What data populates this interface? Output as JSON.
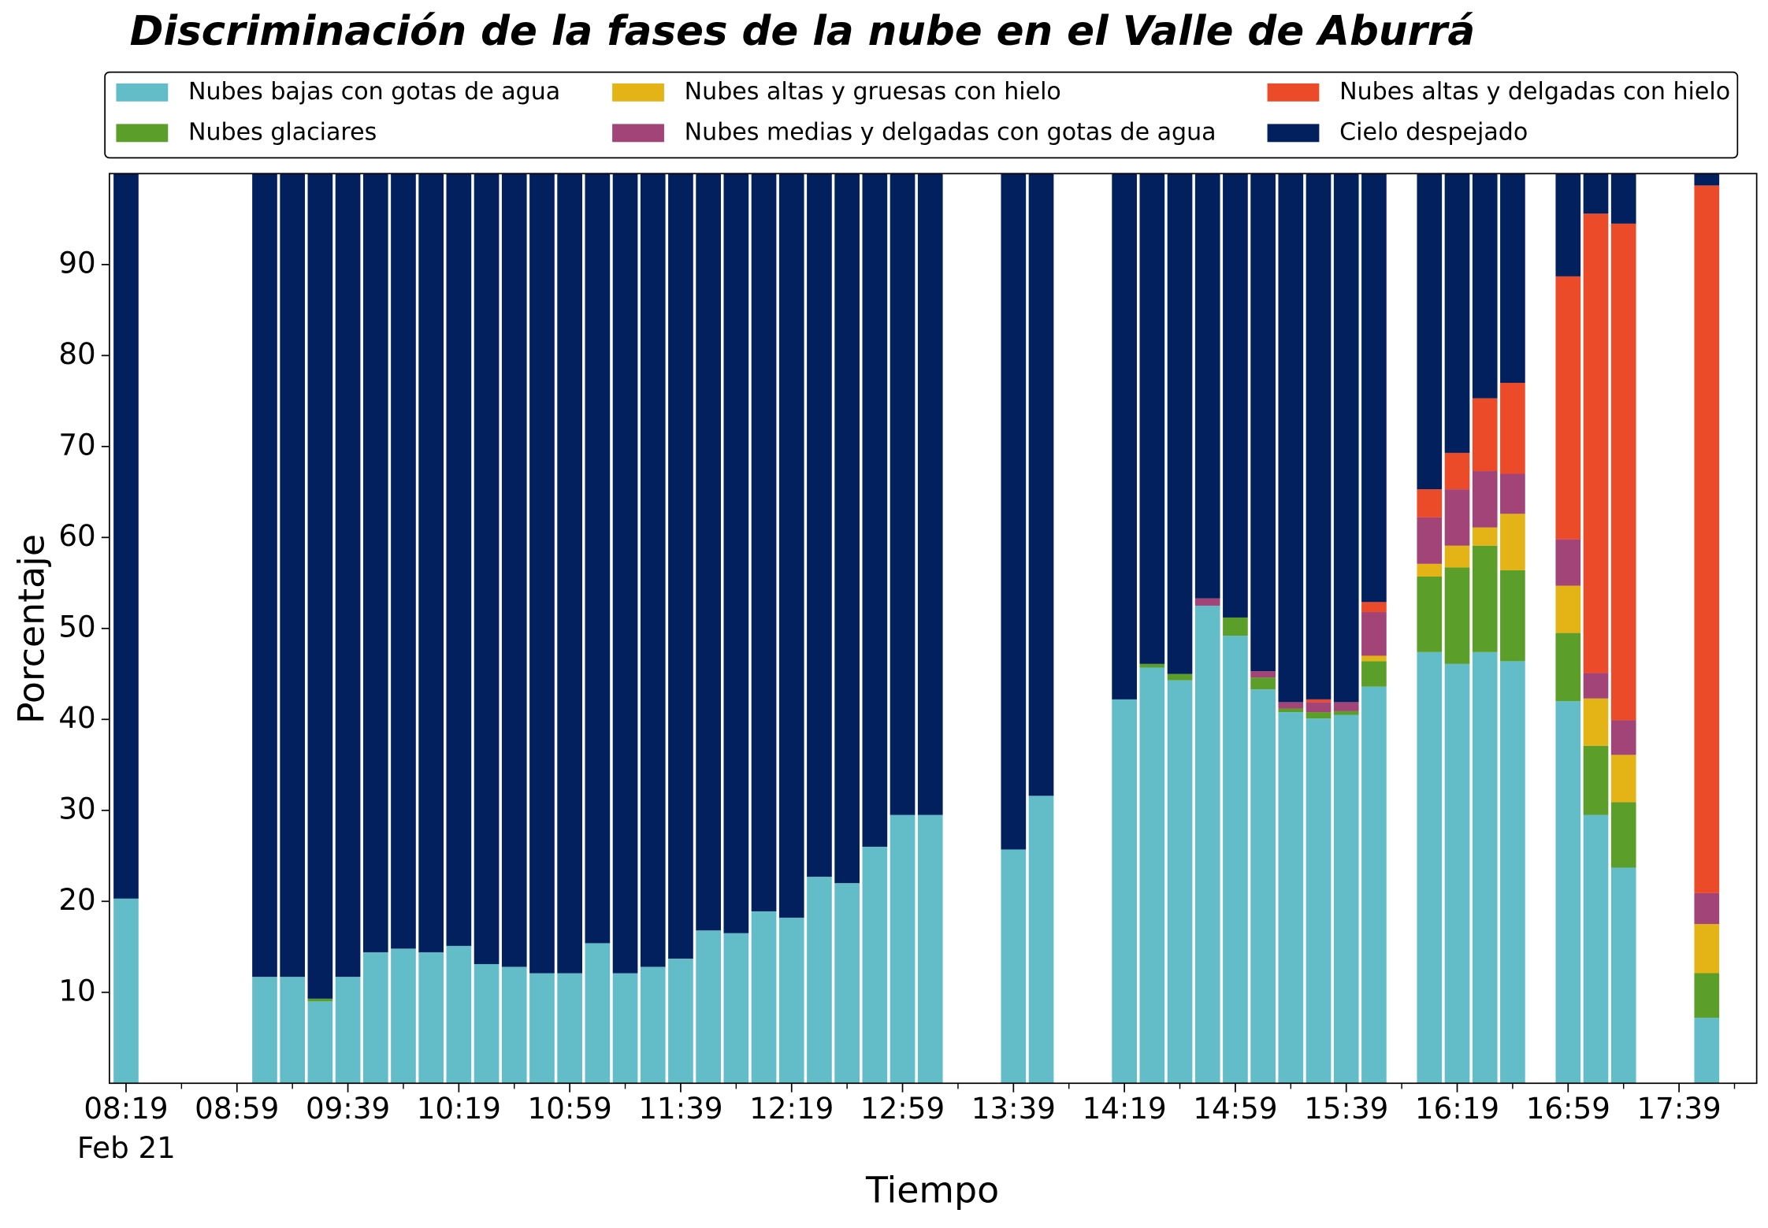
{
  "chart_data": {
    "type": "stacked_bar",
    "title": "Discriminación de la fases de la nube en el Valle de Aburrá",
    "xlabel": "Tiempo",
    "ylabel": "Porcentaje",
    "date": "Feb 21",
    "x": [
      "08:19",
      "09:09",
      "09:19",
      "09:29",
      "09:39",
      "09:49",
      "09:59",
      "10:09",
      "10:19",
      "10:29",
      "10:39",
      "10:49",
      "10:59",
      "11:09",
      "11:19",
      "11:29",
      "11:39",
      "11:49",
      "11:59",
      "12:09",
      "12:19",
      "12:29",
      "12:39",
      "12:49",
      "12:59",
      "13:09",
      "13:39",
      "13:49",
      "14:19",
      "14:29",
      "14:39",
      "14:49",
      "14:59",
      "15:09",
      "15:19",
      "15:29",
      "15:39",
      "15:49",
      "16:09",
      "16:19",
      "16:29",
      "16:39",
      "16:59",
      "17:09",
      "17:19",
      "17:49"
    ],
    "series": [
      {
        "name": "Nubes bajas con gotas de agua",
        "color": "#63bdc9",
        "values": [
          20.3,
          11.7,
          11.7,
          9.0,
          11.7,
          14.4,
          14.8,
          14.4,
          15.1,
          13.1,
          12.8,
          12.1,
          12.1,
          15.4,
          12.1,
          12.8,
          13.7,
          16.8,
          16.5,
          18.9,
          18.2,
          22.7,
          22.0,
          26.0,
          29.5,
          29.5,
          25.7,
          31.6,
          42.2,
          45.7,
          44.3,
          52.5,
          49.2,
          43.3,
          40.8,
          40.1,
          40.5,
          43.6,
          47.4,
          46.1,
          47.4,
          46.4,
          42.0,
          29.5,
          23.7,
          7.2
        ]
      },
      {
        "name": "Nubes glaciares",
        "color": "#5c9e2a",
        "values": [
          0,
          0,
          0,
          0.3,
          0,
          0,
          0,
          0,
          0,
          0,
          0,
          0,
          0,
          0,
          0,
          0,
          0,
          0,
          0,
          0,
          0,
          0,
          0,
          0,
          0,
          0,
          0,
          0,
          0,
          0.4,
          0.7,
          0,
          2.0,
          1.3,
          0.4,
          0.7,
          0.4,
          2.8,
          8.3,
          10.6,
          11.7,
          10.0,
          7.5,
          7.6,
          7.2,
          4.9
        ]
      },
      {
        "name": "Nubes altas y gruesas con hielo",
        "color": "#e4b416",
        "values": [
          0,
          0,
          0,
          0,
          0,
          0,
          0,
          0,
          0,
          0,
          0,
          0,
          0,
          0,
          0,
          0,
          0,
          0,
          0,
          0,
          0,
          0,
          0,
          0,
          0,
          0,
          0,
          0,
          0,
          0,
          0,
          0,
          0,
          0,
          0,
          0,
          0,
          0.6,
          1.4,
          2.4,
          2.0,
          6.2,
          5.2,
          5.2,
          5.2,
          5.4
        ]
      },
      {
        "name": "Nubes medias y delgadas con gotas de agua",
        "color": "#a24477",
        "values": [
          0,
          0,
          0,
          0,
          0,
          0,
          0,
          0,
          0,
          0,
          0,
          0,
          0,
          0,
          0,
          0,
          0,
          0,
          0,
          0,
          0,
          0,
          0,
          0,
          0,
          0,
          0,
          0,
          0,
          0,
          0,
          0.8,
          0,
          0.7,
          0.7,
          1.1,
          1.0,
          4.8,
          5.1,
          6.2,
          6.2,
          4.4,
          5.1,
          2.8,
          3.8,
          3.4
        ]
      },
      {
        "name": "Nubes altas y delgadas con hielo",
        "color": "#ec4b2a",
        "values": [
          0,
          0,
          0,
          0,
          0,
          0,
          0,
          0,
          0,
          0,
          0,
          0,
          0,
          0,
          0,
          0,
          0,
          0,
          0,
          0,
          0,
          0,
          0,
          0,
          0,
          0,
          0,
          0,
          0,
          0,
          0,
          0,
          0,
          0,
          0,
          0.3,
          0,
          1.1,
          3.1,
          4.0,
          8.0,
          10.0,
          28.9,
          50.5,
          54.6,
          77.8
        ]
      },
      {
        "name": "Cielo despejado",
        "color": "#021f5e",
        "values": [
          79.7,
          88.3,
          88.3,
          90.7,
          88.3,
          85.6,
          85.2,
          85.6,
          84.9,
          86.9,
          87.2,
          87.9,
          87.9,
          84.6,
          87.9,
          87.2,
          86.3,
          83.2,
          83.5,
          81.1,
          81.8,
          77.3,
          78.0,
          74.0,
          70.5,
          70.5,
          74.3,
          68.4,
          57.8,
          53.9,
          55.0,
          46.7,
          48.8,
          54.7,
          58.1,
          57.8,
          58.1,
          47.1,
          34.7,
          30.7,
          24.7,
          23.0,
          11.3,
          4.4,
          5.5,
          1.3
        ]
      }
    ],
    "xlim": [
      "08:13",
      "18:07"
    ],
    "xticks": [
      "08:19",
      "08:59",
      "09:39",
      "10:19",
      "10:59",
      "11:39",
      "12:19",
      "12:59",
      "13:39",
      "14:19",
      "14:59",
      "15:39",
      "16:19",
      "16:59",
      "17:39"
    ],
    "xminorticks": [
      "08:39",
      "09:19",
      "09:59",
      "10:39",
      "11:19",
      "11:59",
      "12:39",
      "13:19",
      "13:59",
      "14:39",
      "15:19",
      "15:59",
      "16:39",
      "17:19",
      "17:59"
    ],
    "ylim": [
      0,
      100
    ],
    "yticks": [
      10,
      20,
      30,
      40,
      50,
      60,
      70,
      80,
      90
    ],
    "legend": "top",
    "legend_columns": 3
  }
}
